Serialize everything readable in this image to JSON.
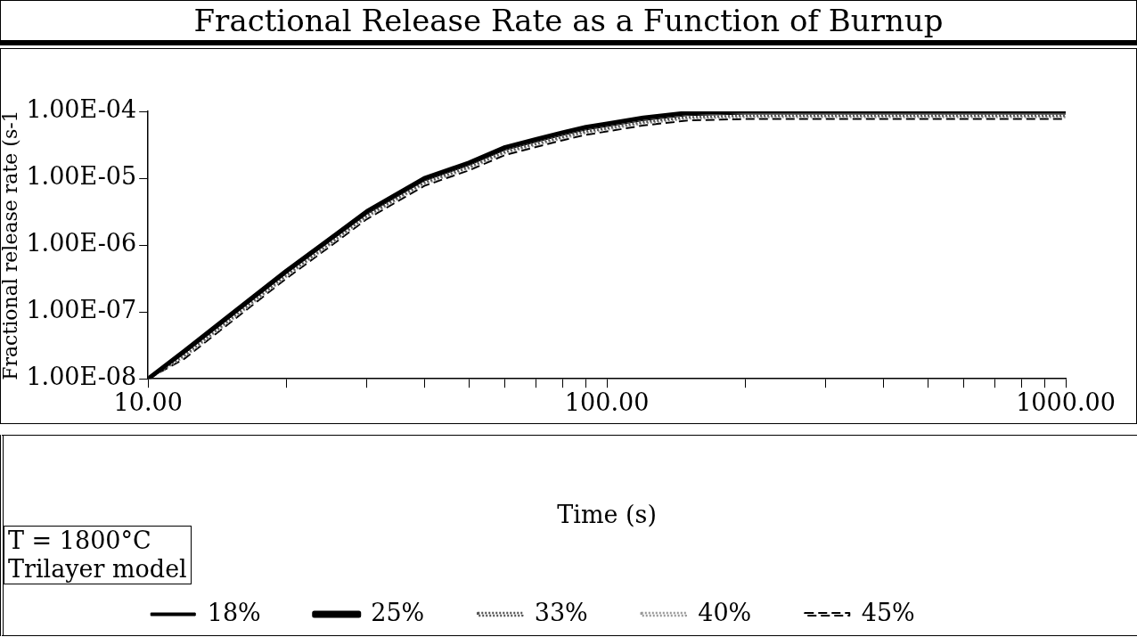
{
  "chart_data": {
    "type": "line",
    "title": "Fractional Release Rate as a Function of Burnup",
    "xlabel": "Time (s)",
    "ylabel": "Fractional release rate (s-1",
    "annotations": [
      "T = 1800°C\nTrilayer model"
    ],
    "x": [
      10,
      12,
      15,
      20,
      25,
      30,
      40,
      50,
      60,
      70,
      80,
      90,
      100,
      120,
      150,
      200,
      300,
      500,
      700,
      1000
    ],
    "series": [
      {
        "name": "18%",
        "color": "#000000",
        "line_style": "solid",
        "values": [
          1e-08,
          2.37e-08,
          7.9e-08,
          3.73e-07,
          1.15e-06,
          2.9e-06,
          9.1e-06,
          1.55e-05,
          2.64e-05,
          3.46e-05,
          4.37e-05,
          5.28e-05,
          5.92e-05,
          7.28e-05,
          8.65e-05,
          9.1e-05,
          9.1e-05,
          9.1e-05,
          9.1e-05,
          9.1e-05
        ]
      },
      {
        "name": "25%",
        "color": "#000000",
        "line_style": "solid",
        "values": [
          1e-08,
          2.6e-08,
          8.7e-08,
          4.1e-07,
          1.26e-06,
          3.2e-06,
          1e-05,
          1.7e-05,
          2.9e-05,
          3.8e-05,
          4.8e-05,
          5.8e-05,
          6.5e-05,
          8e-05,
          9.5e-05,
          0.0001,
          0.0001,
          0.0001,
          0.0001,
          0.0001
        ]
      },
      {
        "name": "33%",
        "color": "#555555",
        "line_style": "dotted",
        "values": [
          1e-08,
          2.24e-08,
          7.5e-08,
          3.53e-07,
          1.08e-06,
          2.75e-06,
          8.6e-06,
          1.46e-05,
          2.49e-05,
          3.27e-05,
          4.13e-05,
          4.99e-05,
          5.59e-05,
          6.88e-05,
          8.17e-05,
          8.6e-05,
          8.6e-05,
          8.6e-05,
          8.6e-05,
          8.6e-05
        ]
      },
      {
        "name": "40%",
        "color": "#999999",
        "line_style": "dotted",
        "values": [
          1e-08,
          2.13e-08,
          7.1e-08,
          3.36e-07,
          1.03e-06,
          2.62e-06,
          8.2e-06,
          1.39e-05,
          2.38e-05,
          3.12e-05,
          3.94e-05,
          4.76e-05,
          5.33e-05,
          6.56e-05,
          7.79e-05,
          8.2e-05,
          8.2e-05,
          8.2e-05,
          8.2e-05,
          8.2e-05
        ]
      },
      {
        "name": "45%",
        "color": "#000000",
        "line_style": "dashed",
        "values": [
          1e-08,
          2e-08,
          6.7e-08,
          3.16e-07,
          9.7e-07,
          2.46e-06,
          7.7e-06,
          1.31e-05,
          2.23e-05,
          2.93e-05,
          3.7e-05,
          4.47e-05,
          5e-05,
          6.16e-05,
          7.3e-05,
          7.7e-05,
          7.7e-05,
          7.7e-05,
          7.7e-05,
          7.7e-05
        ]
      }
    ],
    "log": "xy",
    "xlim": [
      10,
      1000
    ],
    "ylim": [
      1e-08,
      0.0001
    ],
    "xticks": [
      {
        "value": 10,
        "label": "10.00"
      },
      {
        "value": 20,
        "label": null
      },
      {
        "value": 30,
        "label": null
      },
      {
        "value": 40,
        "label": null
      },
      {
        "value": 50,
        "label": null
      },
      {
        "value": 60,
        "label": null
      },
      {
        "value": 70,
        "label": null
      },
      {
        "value": 80,
        "label": null
      },
      {
        "value": 90,
        "label": null
      },
      {
        "value": 100,
        "label": "100.00"
      },
      {
        "value": 200,
        "label": null
      },
      {
        "value": 300,
        "label": null
      },
      {
        "value": 400,
        "label": null
      },
      {
        "value": 500,
        "label": null
      },
      {
        "value": 600,
        "label": null
      },
      {
        "value": 700,
        "label": null
      },
      {
        "value": 800,
        "label": null
      },
      {
        "value": 900,
        "label": null
      },
      {
        "value": 1000,
        "label": "1000.00"
      }
    ],
    "yticks": [
      {
        "value": 1e-08,
        "label": "1.00E-08"
      },
      {
        "value": 1e-07,
        "label": "1.00E-07"
      },
      {
        "value": 1e-06,
        "label": "1.00E-06"
      },
      {
        "value": 1e-05,
        "label": "1.00E-05"
      },
      {
        "value": 0.0001,
        "label": "1.00E-04"
      }
    ],
    "grid": false,
    "legend": "bottom",
    "marker": "none"
  }
}
